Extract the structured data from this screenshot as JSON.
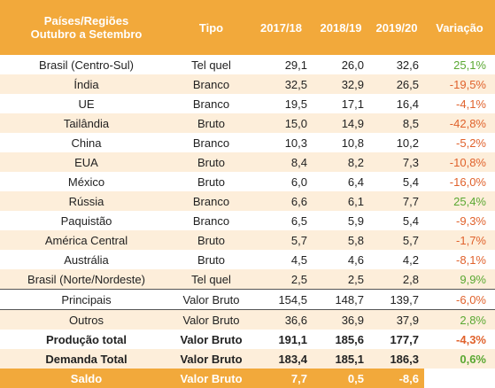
{
  "table": {
    "header": [
      "Países/Regiões\nOutubro a Setembro",
      "Tipo",
      "2017/18",
      "2018/19",
      "2019/20",
      "Variação"
    ],
    "rows": [
      [
        "Brasil (Centro-Sul)",
        "Tel quel",
        "29,1",
        "26,0",
        "32,6",
        "25,1%"
      ],
      [
        "Índia",
        "Branco",
        "32,5",
        "32,9",
        "26,5",
        "-19,5%"
      ],
      [
        "UE",
        "Branco",
        "19,5",
        "17,1",
        "16,4",
        "-4,1%"
      ],
      [
        "Tailândia",
        "Bruto",
        "15,0",
        "14,9",
        "8,5",
        "-42,8%"
      ],
      [
        "China",
        "Branco",
        "10,3",
        "10,8",
        "10,2",
        "-5,2%"
      ],
      [
        "EUA",
        "Bruto",
        "8,4",
        "8,2",
        "7,3",
        "-10,8%"
      ],
      [
        "México",
        "Bruto",
        "6,0",
        "6,4",
        "5,4",
        "-16,0%"
      ],
      [
        "Rússia",
        "Branco",
        "6,6",
        "6,1",
        "7,7",
        "25,4%"
      ],
      [
        "Paquistão",
        "Branco",
        "6,5",
        "5,9",
        "5,4",
        "-9,3%"
      ],
      [
        "América Central",
        "Bruto",
        "5,7",
        "5,8",
        "5,7",
        "-1,7%"
      ],
      [
        "Austrália",
        "Bruto",
        "4,5",
        "4,6",
        "4,2",
        "-8,1%"
      ],
      [
        "Brasil (Norte/Nordeste)",
        "Tel quel",
        "2,5",
        "2,5",
        "2,8",
        "9,9%"
      ],
      [
        "Principais",
        "Valor Bruto",
        "154,5",
        "148,7",
        "139,7",
        "-6,0%"
      ],
      [
        "Outros",
        "Valor Bruto",
        "36,6",
        "36,9",
        "37,9",
        "2,8%"
      ]
    ],
    "totals": [
      [
        "Produção total",
        "Valor Bruto",
        "191,1",
        "185,6",
        "177,7",
        "-4,3%"
      ],
      [
        "Demanda Total",
        "Valor Bruto",
        "183,4",
        "185,1",
        "186,3",
        "0,6%"
      ],
      [
        "Saldo",
        "Valor Bruto",
        "7,7",
        "0,5",
        "-8,6"
      ]
    ]
  }
}
